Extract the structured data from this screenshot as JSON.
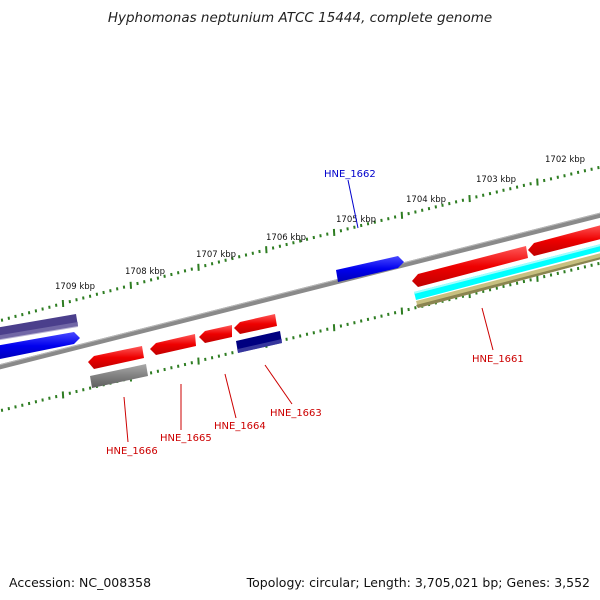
{
  "title": "Hyphomonas neptunium ATCC 15444, complete genome",
  "ruler_labels": [
    "1702 kbp",
    "1703 kbp",
    "1704 kbp",
    "1705 kbp",
    "1706 kbp",
    "1707 kbp",
    "1708 kbp",
    "1709 kbp"
  ],
  "gene_labels": [
    {
      "id": "HNE_1662",
      "color": "#0000cc"
    },
    {
      "id": "HNE_1661",
      "color": "#cc0000"
    },
    {
      "id": "HNE_1663",
      "color": "#cc0000"
    },
    {
      "id": "HNE_1664",
      "color": "#cc0000"
    },
    {
      "id": "HNE_1665",
      "color": "#cc0000"
    },
    {
      "id": "HNE_1666",
      "color": "#cc0000"
    }
  ],
  "footer": {
    "accession": "Accession: NC_008358",
    "topology": "Topology: circular;",
    "length": "Length: 3,705,021 bp;",
    "genes": "Genes: 3,552"
  },
  "colors": {
    "forward_cds": "#ff0000",
    "reverse_cds": "#0000ff",
    "backbone": "#808080",
    "tick": "#2e7d22",
    "navy": "#000080",
    "slate": "#4b3f8c",
    "cyan": "#00ffff",
    "khaki": "#c8c080"
  }
}
